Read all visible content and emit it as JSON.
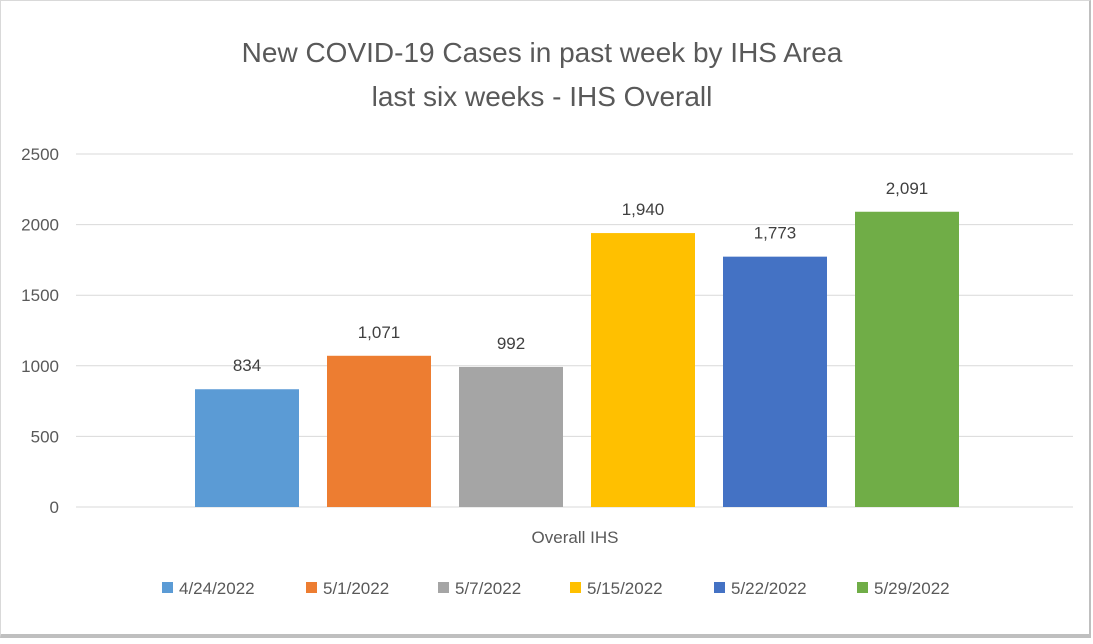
{
  "chart_data": {
    "type": "bar",
    "title_lines": [
      "New COVID-19 Cases in past week by IHS Area",
      "last six weeks - IHS Overall"
    ],
    "categories": [
      "Overall IHS"
    ],
    "series": [
      {
        "name": "4/24/2022",
        "values": [
          834
        ],
        "label": "834",
        "color": "#5B9BD5"
      },
      {
        "name": "5/1/2022",
        "values": [
          1071
        ],
        "label": "1,071",
        "color": "#ED7D31"
      },
      {
        "name": "5/7/2022",
        "values": [
          992
        ],
        "label": "992",
        "color": "#A5A5A5"
      },
      {
        "name": "5/15/2022",
        "values": [
          1940
        ],
        "label": "1,940",
        "color": "#FFC000"
      },
      {
        "name": "5/22/2022",
        "values": [
          1773
        ],
        "label": "1,773",
        "color": "#4472C4"
      },
      {
        "name": "5/29/2022",
        "values": [
          2091
        ],
        "label": "2,091",
        "color": "#70AD47"
      }
    ],
    "ylim": [
      0,
      2500
    ],
    "yticks": [
      "0",
      "500",
      "1000",
      "1500",
      "2000",
      "2500"
    ],
    "ytick_values": [
      0,
      500,
      1000,
      1500,
      2000,
      2500
    ],
    "xlabel": "",
    "ylabel": "",
    "grid": true,
    "legend": "bottom"
  }
}
